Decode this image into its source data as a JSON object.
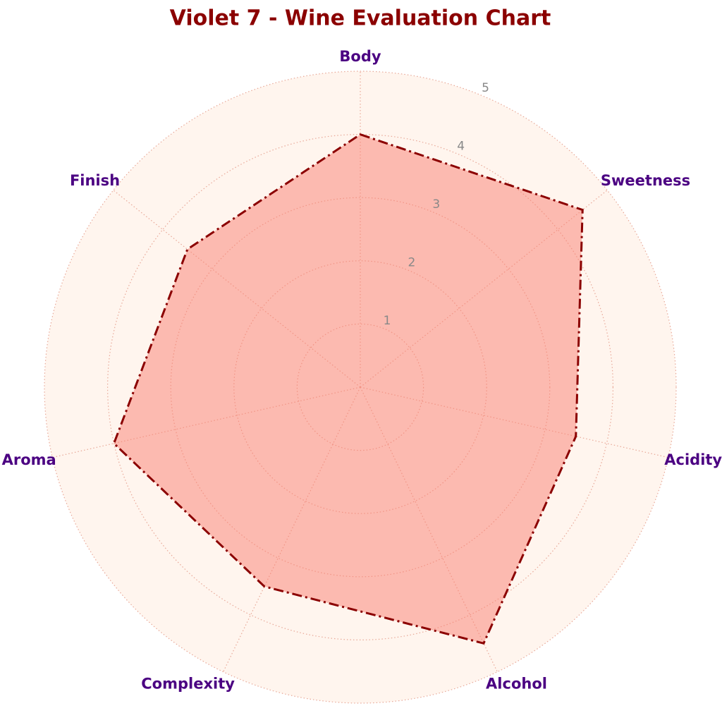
{
  "chart_data": {
    "type": "radar",
    "title": "Violet 7 - Wine Evaluation Chart",
    "categories": [
      "Body",
      "Sweetness",
      "Acidity",
      "Alcohol",
      "Complexity",
      "Aroma",
      "Finish"
    ],
    "values": [
      4.0,
      4.5,
      3.5,
      4.5,
      3.5,
      4.0,
      3.5
    ],
    "color": "#8b0000",
    "fill_color": "#fa8072",
    "ylim": [
      0,
      5
    ],
    "yticks": [
      1,
      2,
      3,
      4,
      5
    ],
    "grid": true
  }
}
